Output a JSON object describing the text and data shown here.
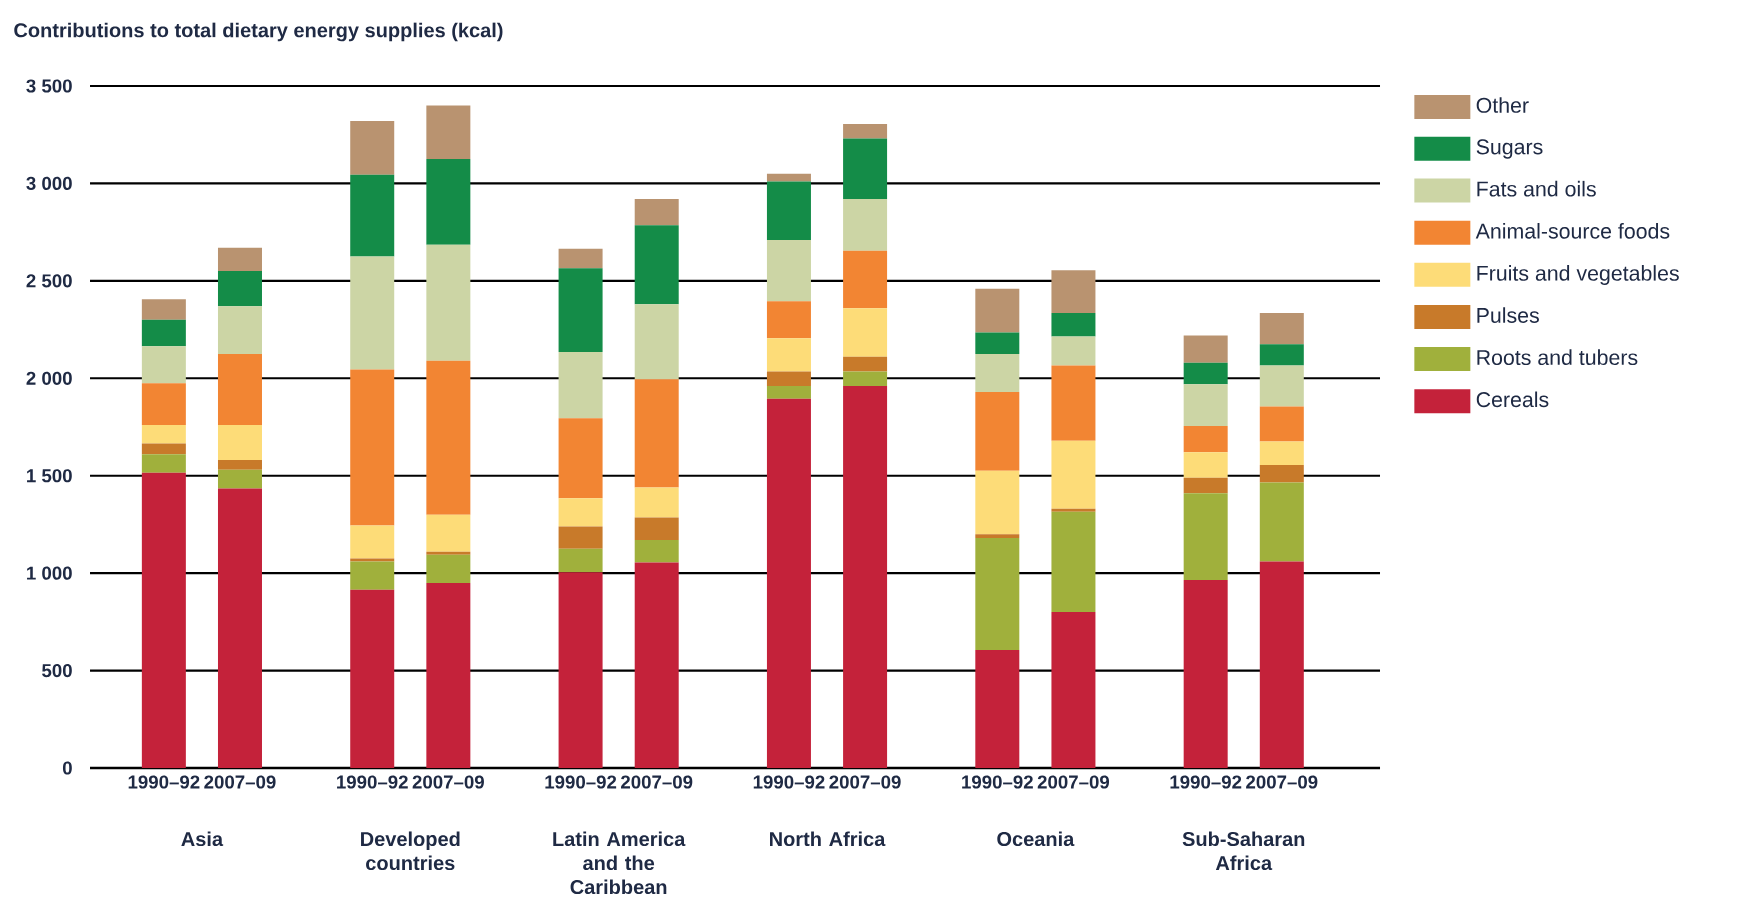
{
  "chart_data": {
    "type": "bar",
    "stacked": true,
    "title": "Contributions to total dietary energy supplies (kcal)",
    "categories": [
      "1990–92",
      "2007–09",
      "1990–92",
      "2007–09",
      "1990–92",
      "2007–09",
      "1990–92",
      "2007–09",
      "1990–92",
      "2007–09",
      "1990–92",
      "2007–09"
    ],
    "annotations": [
      "Asia",
      "Developed countries",
      "Latin America and the Caribbean",
      "North Africa",
      "Oceania",
      "Sub-Saharan Africa"
    ],
    "series": [
      {
        "name": "Cereals",
        "color": "#c4223a",
        "values": [
          1515,
          1435,
          915,
          950,
          1005,
          1055,
          1895,
          1960,
          605,
          800,
          965,
          1060
        ]
      },
      {
        "name": "Roots and tubers",
        "color": "#a0b03c",
        "values": [
          95,
          95,
          145,
          145,
          120,
          115,
          65,
          75,
          575,
          515,
          445,
          405
        ]
      },
      {
        "name": "Pulses",
        "color": "#c87a2a",
        "values": [
          55,
          50,
          15,
          15,
          115,
          115,
          75,
          75,
          20,
          15,
          80,
          90
        ]
      },
      {
        "name": "Fruits and vegetables",
        "color": "#fddc78",
        "values": [
          95,
          180,
          170,
          190,
          145,
          155,
          170,
          250,
          325,
          350,
          130,
          120
        ]
      },
      {
        "name": "Animal-source foods",
        "color": "#f28533",
        "values": [
          215,
          365,
          800,
          790,
          410,
          555,
          190,
          295,
          405,
          385,
          135,
          180
        ]
      },
      {
        "name": "Fats and oils",
        "color": "#ccd5a5",
        "values": [
          190,
          245,
          580,
          595,
          340,
          385,
          315,
          265,
          195,
          150,
          215,
          210
        ]
      },
      {
        "name": "Sugars",
        "color": "#148c48",
        "values": [
          135,
          180,
          420,
          440,
          430,
          405,
          300,
          310,
          110,
          120,
          110,
          110
        ]
      },
      {
        "name": "Other",
        "color": "#b99370",
        "values": [
          105,
          120,
          275,
          275,
          100,
          135,
          40,
          75,
          225,
          220,
          140,
          160
        ]
      }
    ],
    "ylim": [
      0,
      3500
    ],
    "yticks": [
      0,
      500,
      {
        "value": 1000,
        "label": "1 000"
      },
      {
        "value": 1500,
        "label": "1 500"
      },
      {
        "value": 2000,
        "label": "2 000"
      },
      {
        "value": 2500,
        "label": "2 500"
      },
      {
        "value": 3000,
        "label": "3 000"
      },
      {
        "value": 3500,
        "label": "3 500"
      }
    ],
    "grid": "y",
    "legend": "right"
  }
}
